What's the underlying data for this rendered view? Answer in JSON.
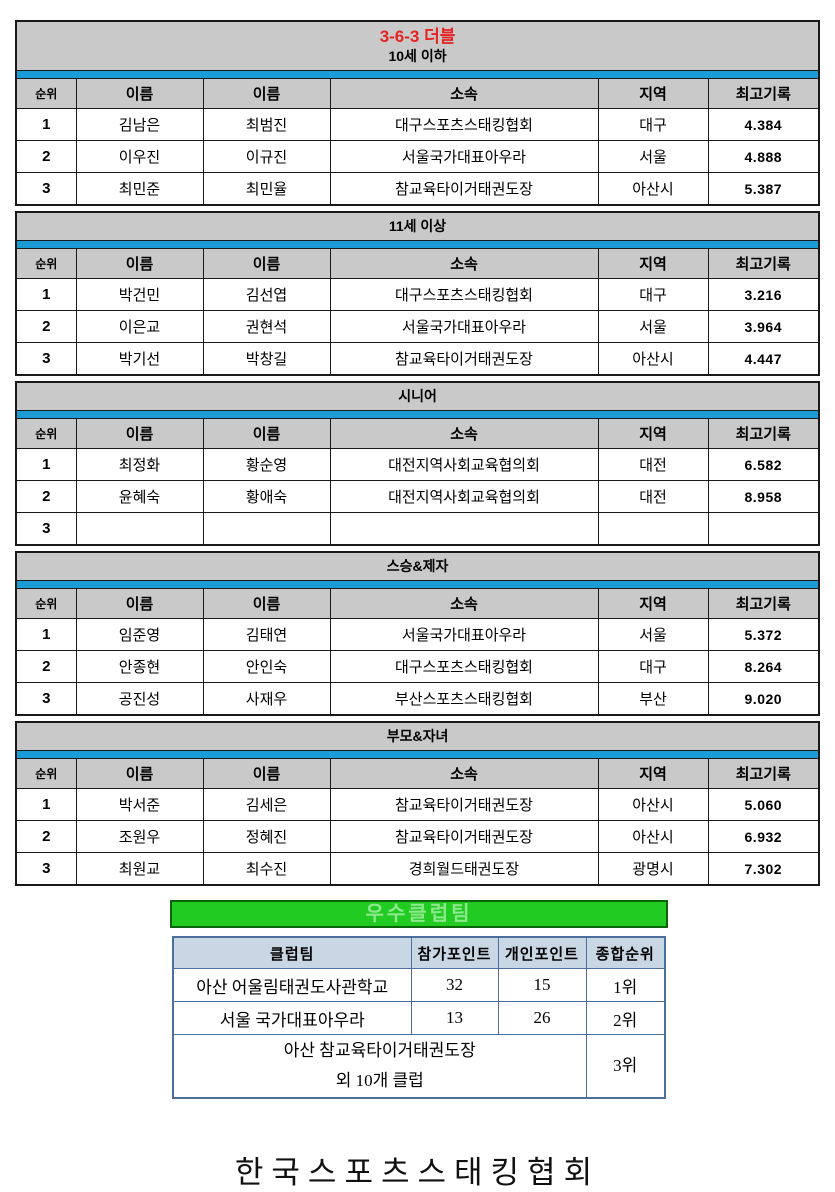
{
  "event": {
    "title": "3-6-3 더블"
  },
  "columns": [
    "순위",
    "이름",
    "이름",
    "소속",
    "지역",
    "최고기록"
  ],
  "sections": [
    {
      "label": "10세 이하",
      "rows": [
        {
          "cells": [
            "1",
            "김남은",
            "최범진",
            "대구스포츠스태킹협회",
            "대구",
            "4.384"
          ]
        },
        {
          "cells": [
            "2",
            "이우진",
            "이규진",
            "서울국가대표아우라",
            "서울",
            "4.888"
          ]
        },
        {
          "cells": [
            "3",
            "최민준",
            "최민율",
            "참교육타이거태권도장",
            "아산시",
            "5.387"
          ]
        }
      ]
    },
    {
      "label": "11세 이상",
      "rows": [
        {
          "cells": [
            "1",
            "박건민",
            "김선엽",
            "대구스포츠스태킹협회",
            "대구",
            "3.216"
          ]
        },
        {
          "cells": [
            "2",
            "이은교",
            "권현석",
            "서울국가대표아우라",
            "서울",
            "3.964"
          ]
        },
        {
          "cells": [
            "3",
            "박기선",
            "박창길",
            "참교육타이거태권도장",
            "아산시",
            "4.447"
          ]
        }
      ]
    },
    {
      "label": "시니어",
      "rows": [
        {
          "cells": [
            "1",
            "최정화",
            "황순영",
            "대전지역사회교육협의회",
            "대전",
            "6.582"
          ]
        },
        {
          "cells": [
            "2",
            "윤혜숙",
            "황애숙",
            "대전지역사회교육협의회",
            "대전",
            "8.958"
          ]
        },
        {
          "cells": [
            "3",
            "",
            "",
            "",
            "",
            ""
          ]
        }
      ]
    },
    {
      "label": "스승&제자",
      "rows": [
        {
          "cells": [
            "1",
            "임준영",
            "김태연",
            "서울국가대표아우라",
            "서울",
            "5.372"
          ]
        },
        {
          "cells": [
            "2",
            "안종현",
            "안인숙",
            "대구스포츠스태킹협회",
            "대구",
            "8.264"
          ]
        },
        {
          "cells": [
            "3",
            "공진성",
            "사재우",
            "부산스포츠스태킹협회",
            "부산",
            "9.020"
          ]
        }
      ]
    },
    {
      "label": "부모&자녀",
      "rows": [
        {
          "cells": [
            "1",
            "박서준",
            "김세은",
            "참교육타이거태권도장",
            "아산시",
            "5.060"
          ]
        },
        {
          "cells": [
            "2",
            "조원우",
            "정혜진",
            "참교육타이거태권도장",
            "아산시",
            "6.932"
          ]
        },
        {
          "cells": [
            "3",
            "최원교",
            "최수진",
            "경희월드태권도장",
            "광명시",
            "7.302"
          ]
        }
      ]
    }
  ],
  "club": {
    "title": "우수클럽팀",
    "columns": [
      "클럽팀",
      "참가포인트",
      "개인포인트",
      "종합순위"
    ],
    "rows": [
      {
        "cells": [
          "아산 어울림태권도사관학교",
          "32",
          "15",
          "1위"
        ]
      },
      {
        "cells": [
          "서울 국가대표아우라",
          "13",
          "26",
          "2위"
        ]
      }
    ],
    "merged_row": {
      "club_line1": "아산 참교육타이거태권도장",
      "club_line2": "외 10개 클럽",
      "rank": "3위"
    }
  },
  "footer": {
    "org": "한국스포츠스태킹협회"
  },
  "colors": {
    "title_red": "#E62222",
    "divider_blue": "#1B9CD6",
    "header_gray": "#C9C9C9",
    "club_green_bg": "#22CB22",
    "club_green_text": "#8CE88C",
    "club_header_bg": "#C9D6E4",
    "club_border": "#4C6F9B"
  }
}
